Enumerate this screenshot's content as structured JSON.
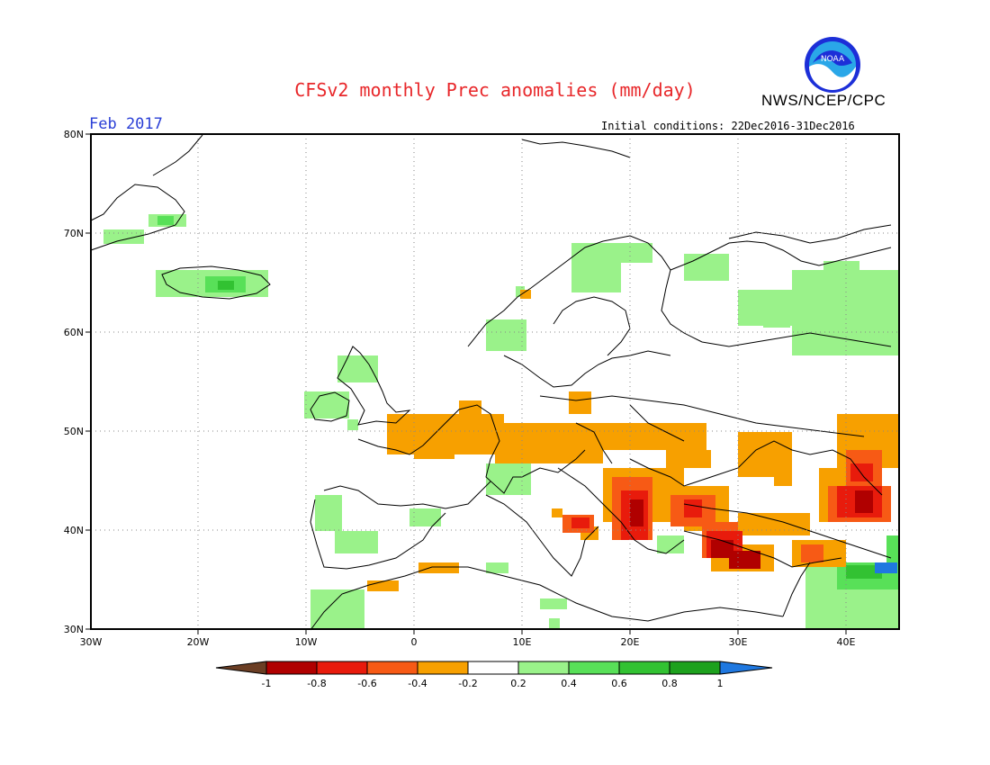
{
  "header": {
    "title": "CFSv2 monthly Prec anomalies (mm/day)",
    "org": "NWS/NCEP/CPC",
    "month": "Feb 2017",
    "initial_conditions": "Initial conditions: 22Dec2016-31Dec2016",
    "logo_text": "NOAA"
  },
  "map": {
    "lon_ticks": [
      "30W",
      "20W",
      "10W",
      "0",
      "10E",
      "20E",
      "30E",
      "40E"
    ],
    "lat_ticks": [
      "80N",
      "70N",
      "60N",
      "50N",
      "40N",
      "30N"
    ],
    "lon_range": [
      -30,
      45
    ],
    "lat_range": [
      30,
      80
    ],
    "grid": "dotted"
  },
  "colorbar": {
    "labels": [
      "-1",
      "-0.8",
      "-0.6",
      "-0.4",
      "-0.2",
      "0.2",
      "0.4",
      "0.6",
      "0.8",
      "1"
    ],
    "colors": [
      "#6b3e24",
      "#b00000",
      "#e81b0c",
      "#f75a15",
      "#f7a000",
      "#ffffff",
      "#9af28a",
      "#58e058",
      "#32c232",
      "#1da11d",
      "#1f78e0"
    ]
  }
}
